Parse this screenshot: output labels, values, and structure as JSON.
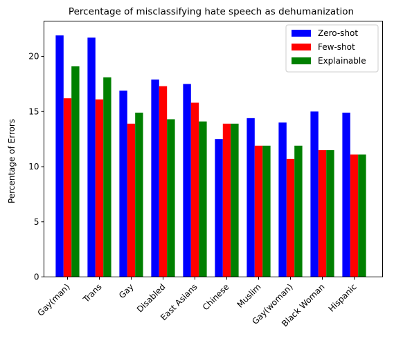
{
  "chart_data": {
    "type": "bar",
    "title": "Percentage of misclassifying hate speech as dehumanization",
    "xlabel": "",
    "ylabel": "Percentage of Errors",
    "ylim": [
      0,
      23.2
    ],
    "yticks": [
      0,
      5,
      10,
      15,
      20
    ],
    "grid": false,
    "legend_position": "top-right",
    "categories": [
      "Gay(man)",
      "Trans",
      "Gay",
      "Disabled",
      "East Asians",
      "Chinese",
      "Muslim",
      "Gay(woman)",
      "Black Woman",
      "Hispanic"
    ],
    "series": [
      {
        "name": "Zero-shot",
        "color": "#0000ff",
        "values": [
          21.9,
          21.7,
          16.9,
          17.9,
          17.5,
          12.5,
          14.4,
          14.0,
          15.0,
          14.9
        ]
      },
      {
        "name": "Few-shot",
        "color": "#ff0000",
        "values": [
          16.2,
          16.1,
          13.9,
          17.3,
          15.8,
          13.9,
          11.9,
          10.7,
          11.5,
          11.1
        ]
      },
      {
        "name": "Explainable",
        "color": "#008000",
        "values": [
          19.1,
          18.1,
          14.9,
          14.3,
          14.1,
          13.9,
          11.9,
          11.9,
          11.5,
          11.1
        ]
      }
    ]
  }
}
